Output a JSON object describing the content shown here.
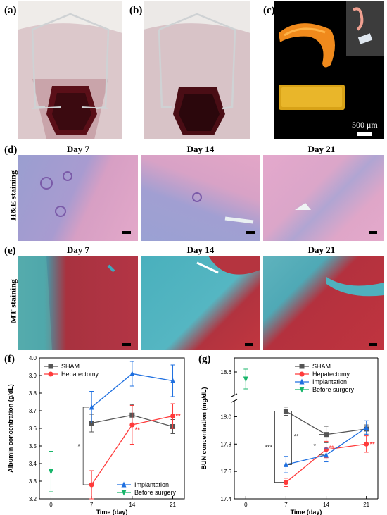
{
  "panels": {
    "a": "(a)",
    "b": "(b)",
    "c": "(c)",
    "d": "(d)",
    "e": "(e)",
    "f": "(f)",
    "g": "(g)"
  },
  "panel_c": {
    "scale_label": "500 μm"
  },
  "histology": {
    "days": [
      "Day 7",
      "Day 14",
      "Day 21"
    ],
    "row_d_label": "H&E staining",
    "row_e_label": "MT staining"
  },
  "chart_data": [
    {
      "type": "line",
      "panel": "(f)",
      "xlabel": "Time (day)",
      "ylabel": "Albumin concentration (g/dL)",
      "xticks": [
        0,
        7,
        14,
        21
      ],
      "yticks": [
        3.2,
        3.3,
        3.4,
        3.5,
        3.6,
        3.7,
        3.8,
        3.9,
        4.0
      ],
      "xlim": [
        -2,
        23
      ],
      "ylim": [
        3.2,
        4.0
      ],
      "legend_top": [
        "SHAM",
        "Hepatectomy"
      ],
      "legend_bottom": [
        "Implantation",
        "Before surgery"
      ],
      "series": [
        {
          "name": "SHAM",
          "color": "#555555",
          "marker": "square",
          "x": [
            7,
            14,
            21
          ],
          "y": [
            3.63,
            3.675,
            3.61
          ],
          "err": [
            0.05,
            0.06,
            0.04
          ]
        },
        {
          "name": "Hepatectomy",
          "color": "#ff3b3b",
          "marker": "circle",
          "x": [
            7,
            14,
            21
          ],
          "y": [
            3.28,
            3.62,
            3.67
          ],
          "err": [
            0.08,
            0.11,
            0.07
          ]
        },
        {
          "name": "Implantation",
          "color": "#1e6fe0",
          "marker": "triangle-up",
          "x": [
            7,
            14,
            21
          ],
          "y": [
            3.72,
            3.91,
            3.87
          ],
          "err": [
            0.09,
            0.07,
            0.09
          ]
        },
        {
          "name": "Before surgery",
          "color": "#18b56a",
          "marker": "triangle-down",
          "x": [
            0
          ],
          "y": [
            3.355
          ],
          "err": [
            0.115
          ]
        }
      ],
      "annotations": [
        {
          "text": "*",
          "color": "#333333"
        },
        {
          "text": "**",
          "color": "#ff3b3b"
        },
        {
          "text": "**",
          "color": "#ff3b3b"
        }
      ]
    },
    {
      "type": "line",
      "panel": "(g)",
      "xlabel": "Time (day)",
      "ylabel": "BUN concentration (mg/dL)",
      "xticks": [
        0,
        7,
        14,
        21
      ],
      "yticks_lower": [
        17.4,
        17.6,
        17.8,
        18.0
      ],
      "yticks_upper": [
        18.6
      ],
      "xlim": [
        -2,
        23
      ],
      "axis_break": true,
      "legend": [
        "SHAM",
        "Hepatectomy",
        "Implantation",
        "Before surgery"
      ],
      "series": [
        {
          "name": "SHAM",
          "color": "#555555",
          "marker": "square",
          "x": [
            7,
            14,
            21
          ],
          "y": [
            18.04,
            17.87,
            17.91
          ],
          "err": [
            0.03,
            0.06,
            0.03
          ]
        },
        {
          "name": "Hepatectomy",
          "color": "#ff3b3b",
          "marker": "circle",
          "x": [
            7,
            14,
            21
          ],
          "y": [
            17.52,
            17.76,
            17.8
          ],
          "err": [
            0.03,
            0.06,
            0.06
          ]
        },
        {
          "name": "Implantation",
          "color": "#1e6fe0",
          "marker": "triangle-up",
          "x": [
            7,
            14,
            21
          ],
          "y": [
            17.65,
            17.72,
            17.92
          ],
          "err": [
            0.06,
            0.05,
            0.05
          ]
        },
        {
          "name": "Before surgery",
          "color": "#18b56a",
          "marker": "triangle-down",
          "x": [
            0
          ],
          "y": [
            18.55
          ],
          "err": [
            0.07
          ]
        }
      ],
      "annotations": [
        {
          "text": "***",
          "color": "#333333"
        },
        {
          "text": "**",
          "color": "#333333"
        },
        {
          "text": "*",
          "color": "#333333"
        },
        {
          "text": "**",
          "color": "#ff3b3b"
        },
        {
          "text": "**",
          "color": "#ff3b3b"
        }
      ]
    }
  ]
}
